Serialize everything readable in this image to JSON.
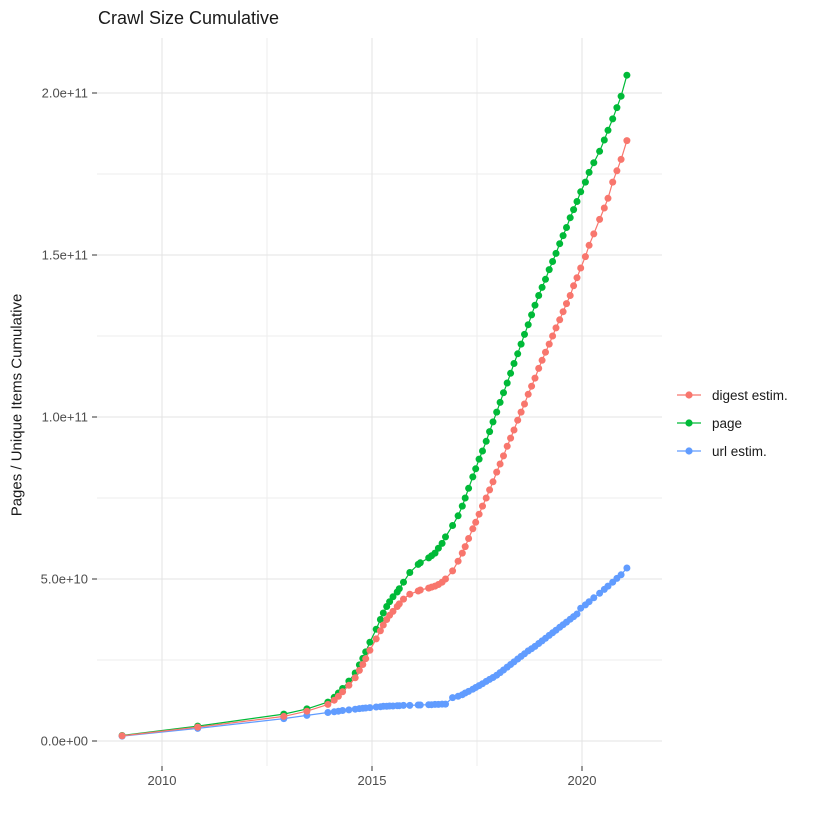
{
  "chart_data": {
    "type": "scatter",
    "title": "Crawl Size Cumulative",
    "xlabel": "",
    "ylabel": "Pages / Unique Items Cumulative",
    "legend_position": "right",
    "grid": true,
    "colors": {
      "background": "#ffffff",
      "grid_major": "#e3e3e3",
      "grid_minor": "#eeeeee",
      "tick_mark": "#333333",
      "tick_label": "#4d4d4d",
      "title_text": "#1a1a1a"
    },
    "x_ticks": {
      "major": [
        2010,
        2015,
        2020
      ],
      "minor": [
        2012.5,
        2017.5
      ],
      "labels": [
        "2010",
        "2015",
        "2020"
      ]
    },
    "y_ticks": {
      "major": [
        0,
        50,
        100,
        150,
        200
      ],
      "minor": [
        25,
        75,
        125,
        175
      ],
      "labels": [
        "0.0e+00",
        "5.0e+10",
        "1.0e+11",
        "1.5e+11",
        "2.0e+11"
      ]
    },
    "value_unit": 1000000000,
    "xlim": [
      2008.45,
      2021.7
    ],
    "ylim_unit_values": [
      -8.5,
      216
    ],
    "series": [
      {
        "name": "digest estim.",
        "color": "#F8766D",
        "points": [
          [
            2009.05,
            1.6
          ],
          [
            2010.85,
            4.3
          ],
          [
            2012.9,
            7.6
          ],
          [
            2013.45,
            9.2
          ],
          [
            2013.95,
            11.3
          ],
          [
            2014.1,
            12.6
          ],
          [
            2014.2,
            13.8
          ],
          [
            2014.3,
            15.2
          ],
          [
            2014.45,
            17.2
          ],
          [
            2014.6,
            19.5
          ],
          [
            2014.7,
            21.8
          ],
          [
            2014.78,
            23.6
          ],
          [
            2014.85,
            25.4
          ],
          [
            2014.95,
            28.0
          ],
          [
            2015.1,
            31.5
          ],
          [
            2015.2,
            34.0
          ],
          [
            2015.27,
            35.8
          ],
          [
            2015.35,
            37.5
          ],
          [
            2015.42,
            38.8
          ],
          [
            2015.5,
            40.0
          ],
          [
            2015.6,
            41.5
          ],
          [
            2015.65,
            42.3
          ],
          [
            2015.75,
            43.8
          ],
          [
            2015.9,
            45.3
          ],
          [
            2016.1,
            46.3
          ],
          [
            2016.15,
            46.6
          ],
          [
            2016.35,
            47.2
          ],
          [
            2016.42,
            47.5
          ],
          [
            2016.5,
            47.8
          ],
          [
            2016.58,
            48.3
          ],
          [
            2016.67,
            49.0
          ],
          [
            2016.75,
            50.0
          ],
          [
            2016.92,
            52.5
          ],
          [
            2017.05,
            55.5
          ],
          [
            2017.15,
            58.0
          ],
          [
            2017.22,
            60.0
          ],
          [
            2017.3,
            62.5
          ],
          [
            2017.4,
            65.5
          ],
          [
            2017.47,
            67.5
          ],
          [
            2017.55,
            70.0
          ],
          [
            2017.63,
            72.5
          ],
          [
            2017.72,
            75.0
          ],
          [
            2017.8,
            77.5
          ],
          [
            2017.88,
            80.0
          ],
          [
            2017.97,
            83.0
          ],
          [
            2018.05,
            85.5
          ],
          [
            2018.13,
            88.0
          ],
          [
            2018.22,
            91.0
          ],
          [
            2018.3,
            93.5
          ],
          [
            2018.38,
            96.0
          ],
          [
            2018.47,
            99.0
          ],
          [
            2018.55,
            101.5
          ],
          [
            2018.63,
            104.0
          ],
          [
            2018.72,
            107.0
          ],
          [
            2018.8,
            109.5
          ],
          [
            2018.88,
            112.0
          ],
          [
            2018.97,
            115.0
          ],
          [
            2019.05,
            117.5
          ],
          [
            2019.13,
            120.0
          ],
          [
            2019.22,
            122.5
          ],
          [
            2019.3,
            125.0
          ],
          [
            2019.38,
            127.5
          ],
          [
            2019.47,
            130.0
          ],
          [
            2019.55,
            132.5
          ],
          [
            2019.63,
            135.0
          ],
          [
            2019.72,
            137.5
          ],
          [
            2019.8,
            140.5
          ],
          [
            2019.88,
            143.0
          ],
          [
            2019.97,
            146.0
          ],
          [
            2020.08,
            149.5
          ],
          [
            2020.17,
            153.0
          ],
          [
            2020.28,
            156.5
          ],
          [
            2020.42,
            161.0
          ],
          [
            2020.53,
            164.5
          ],
          [
            2020.62,
            167.5
          ],
          [
            2020.73,
            172.5
          ],
          [
            2020.83,
            176.0
          ],
          [
            2020.93,
            179.5
          ],
          [
            2021.07,
            185.3
          ]
        ]
      },
      {
        "name": "page",
        "color": "#00BA38",
        "points": [
          [
            2009.05,
            1.7
          ],
          [
            2010.85,
            4.6
          ],
          [
            2012.9,
            8.3
          ],
          [
            2013.45,
            9.9
          ],
          [
            2013.95,
            12.0
          ],
          [
            2014.1,
            13.5
          ],
          [
            2014.2,
            14.8
          ],
          [
            2014.3,
            16.2
          ],
          [
            2014.45,
            18.5
          ],
          [
            2014.6,
            21.0
          ],
          [
            2014.7,
            23.5
          ],
          [
            2014.78,
            25.5
          ],
          [
            2014.85,
            27.5
          ],
          [
            2014.95,
            30.5
          ],
          [
            2015.1,
            34.5
          ],
          [
            2015.2,
            37.5
          ],
          [
            2015.27,
            39.5
          ],
          [
            2015.35,
            41.5
          ],
          [
            2015.42,
            43.0
          ],
          [
            2015.5,
            44.5
          ],
          [
            2015.6,
            46.0
          ],
          [
            2015.65,
            47.0
          ],
          [
            2015.75,
            49.0
          ],
          [
            2015.9,
            52.0
          ],
          [
            2016.1,
            54.5
          ],
          [
            2016.15,
            55.0
          ],
          [
            2016.35,
            56.5
          ],
          [
            2016.42,
            57.2
          ],
          [
            2016.5,
            58.0
          ],
          [
            2016.58,
            59.5
          ],
          [
            2016.67,
            61.0
          ],
          [
            2016.75,
            63.0
          ],
          [
            2016.92,
            66.5
          ],
          [
            2017.05,
            69.5
          ],
          [
            2017.15,
            72.5
          ],
          [
            2017.22,
            75.0
          ],
          [
            2017.3,
            78.0
          ],
          [
            2017.4,
            81.5
          ],
          [
            2017.47,
            84.0
          ],
          [
            2017.55,
            87.0
          ],
          [
            2017.63,
            89.5
          ],
          [
            2017.72,
            92.5
          ],
          [
            2017.8,
            95.5
          ],
          [
            2017.88,
            98.5
          ],
          [
            2017.97,
            101.5
          ],
          [
            2018.05,
            104.5
          ],
          [
            2018.13,
            107.5
          ],
          [
            2018.22,
            110.5
          ],
          [
            2018.3,
            113.5
          ],
          [
            2018.38,
            116.5
          ],
          [
            2018.47,
            119.5
          ],
          [
            2018.55,
            122.5
          ],
          [
            2018.63,
            125.5
          ],
          [
            2018.72,
            128.5
          ],
          [
            2018.8,
            131.5
          ],
          [
            2018.88,
            134.5
          ],
          [
            2018.97,
            137.5
          ],
          [
            2019.05,
            140.0
          ],
          [
            2019.13,
            142.5
          ],
          [
            2019.22,
            145.5
          ],
          [
            2019.3,
            148.0
          ],
          [
            2019.38,
            150.5
          ],
          [
            2019.47,
            153.5
          ],
          [
            2019.55,
            156.0
          ],
          [
            2019.63,
            158.5
          ],
          [
            2019.72,
            161.5
          ],
          [
            2019.8,
            164.0
          ],
          [
            2019.88,
            166.5
          ],
          [
            2019.97,
            169.5
          ],
          [
            2020.08,
            172.5
          ],
          [
            2020.17,
            175.5
          ],
          [
            2020.28,
            178.5
          ],
          [
            2020.42,
            182.0
          ],
          [
            2020.53,
            185.5
          ],
          [
            2020.62,
            188.5
          ],
          [
            2020.73,
            192.0
          ],
          [
            2020.83,
            195.5
          ],
          [
            2020.93,
            199.0
          ],
          [
            2021.07,
            205.5
          ]
        ]
      },
      {
        "name": "url estim.",
        "color": "#619CFF",
        "points": [
          [
            2009.05,
            1.5
          ],
          [
            2010.85,
            3.9
          ],
          [
            2012.9,
            6.9
          ],
          [
            2013.45,
            7.9
          ],
          [
            2013.95,
            8.8
          ],
          [
            2014.1,
            9.0
          ],
          [
            2014.2,
            9.2
          ],
          [
            2014.3,
            9.4
          ],
          [
            2014.45,
            9.6
          ],
          [
            2014.6,
            9.8
          ],
          [
            2014.7,
            10.0
          ],
          [
            2014.78,
            10.1
          ],
          [
            2014.85,
            10.2
          ],
          [
            2014.95,
            10.3
          ],
          [
            2015.1,
            10.5
          ],
          [
            2015.2,
            10.6
          ],
          [
            2015.27,
            10.7
          ],
          [
            2015.35,
            10.7
          ],
          [
            2015.42,
            10.8
          ],
          [
            2015.5,
            10.8
          ],
          [
            2015.6,
            10.9
          ],
          [
            2015.65,
            10.9
          ],
          [
            2015.75,
            11.0
          ],
          [
            2015.9,
            11.0
          ],
          [
            2016.1,
            11.1
          ],
          [
            2016.15,
            11.1
          ],
          [
            2016.35,
            11.2
          ],
          [
            2016.42,
            11.2
          ],
          [
            2016.5,
            11.3
          ],
          [
            2016.58,
            11.3
          ],
          [
            2016.67,
            11.4
          ],
          [
            2016.75,
            11.4
          ],
          [
            2016.92,
            13.4
          ],
          [
            2017.05,
            13.8
          ],
          [
            2017.15,
            14.3
          ],
          [
            2017.22,
            14.8
          ],
          [
            2017.3,
            15.3
          ],
          [
            2017.4,
            16.0
          ],
          [
            2017.47,
            16.5
          ],
          [
            2017.55,
            17.1
          ],
          [
            2017.63,
            17.7
          ],
          [
            2017.72,
            18.4
          ],
          [
            2017.8,
            19.0
          ],
          [
            2017.88,
            19.6
          ],
          [
            2017.97,
            20.3
          ],
          [
            2018.05,
            21.1
          ],
          [
            2018.13,
            21.9
          ],
          [
            2018.22,
            22.8
          ],
          [
            2018.3,
            23.6
          ],
          [
            2018.38,
            24.4
          ],
          [
            2018.47,
            25.3
          ],
          [
            2018.55,
            26.1
          ],
          [
            2018.63,
            26.9
          ],
          [
            2018.72,
            27.8
          ],
          [
            2018.8,
            28.5
          ],
          [
            2018.88,
            29.2
          ],
          [
            2018.97,
            30.1
          ],
          [
            2019.05,
            30.9
          ],
          [
            2019.13,
            31.7
          ],
          [
            2019.22,
            32.6
          ],
          [
            2019.3,
            33.4
          ],
          [
            2019.38,
            34.2
          ],
          [
            2019.47,
            35.1
          ],
          [
            2019.55,
            35.9
          ],
          [
            2019.63,
            36.7
          ],
          [
            2019.72,
            37.6
          ],
          [
            2019.8,
            38.4
          ],
          [
            2019.88,
            39.2
          ],
          [
            2019.97,
            41.0
          ],
          [
            2020.08,
            42.0
          ],
          [
            2020.17,
            43.0
          ],
          [
            2020.28,
            44.2
          ],
          [
            2020.42,
            45.6
          ],
          [
            2020.53,
            46.8
          ],
          [
            2020.62,
            47.8
          ],
          [
            2020.73,
            49.0
          ],
          [
            2020.83,
            50.2
          ],
          [
            2020.93,
            51.3
          ],
          [
            2021.07,
            53.4
          ]
        ]
      }
    ]
  }
}
